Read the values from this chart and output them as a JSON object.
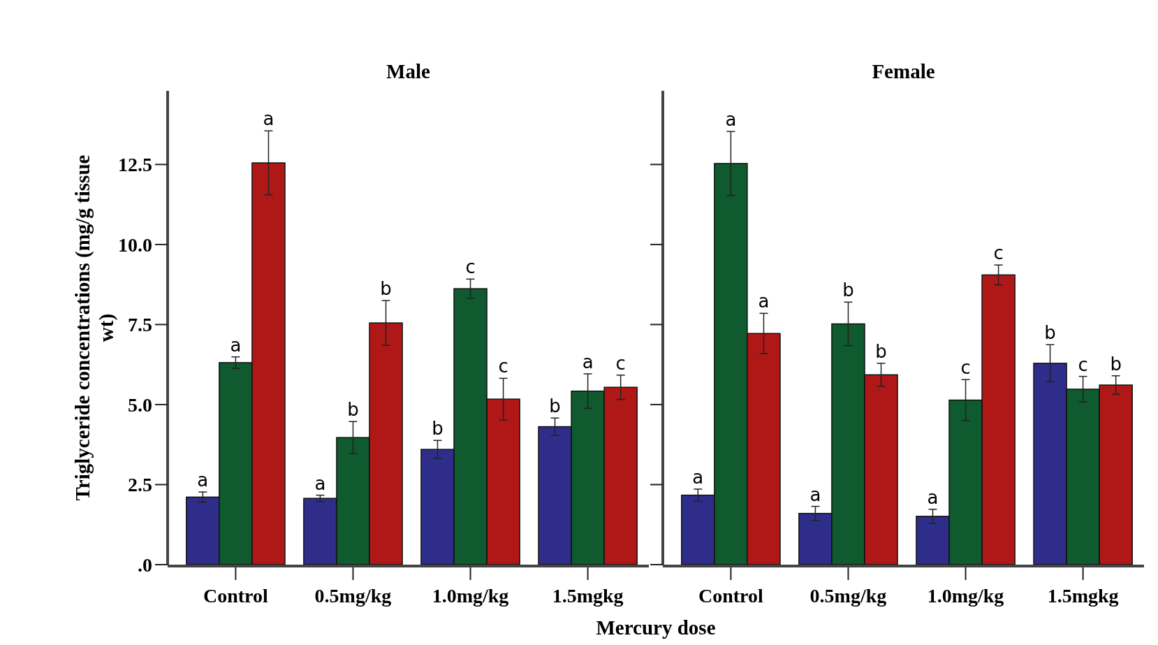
{
  "chart_data": [
    {
      "type": "bar",
      "title": "Male",
      "ylabel": "Triglyceride concentrations (mg/g tissue wt)",
      "xlabel": "Mercury dose",
      "categories": [
        "Control",
        "0.5mg/kg",
        "1.0mg/kg",
        "1.5mgkg"
      ],
      "ylim": [
        0,
        14.8
      ],
      "yticks": [
        {
          "value": 0,
          "label": ".0"
        },
        {
          "value": 2.5,
          "label": "2.5"
        },
        {
          "value": 5,
          "label": "5.0"
        },
        {
          "value": 7.5,
          "label": "7.5"
        },
        {
          "value": 10,
          "label": "10.0"
        },
        {
          "value": 12.5,
          "label": "12.5"
        }
      ],
      "grid": false,
      "series": [
        {
          "color": "#2e2e8a",
          "values": [
            2.11,
            2.07,
            3.6,
            4.31
          ],
          "errors": [
            0.16,
            0.1,
            0.28,
            0.27
          ],
          "value_labels": [
            "a",
            "a",
            "b",
            "b"
          ]
        },
        {
          "color": "#0f5a2e",
          "values": [
            6.31,
            3.97,
            8.62,
            5.42
          ],
          "errors": [
            0.18,
            0.5,
            0.3,
            0.54
          ],
          "value_labels": [
            "a",
            "b",
            "c",
            "a"
          ]
        },
        {
          "color": "#b01818",
          "values": [
            12.55,
            7.55,
            5.17,
            5.54
          ],
          "errors": [
            1.0,
            0.7,
            0.65,
            0.38
          ],
          "value_labels": [
            "a",
            "b",
            "c",
            "c"
          ]
        }
      ]
    },
    {
      "type": "bar",
      "title": "Female",
      "categories": [
        "Control",
        "0.5mg/kg",
        "1.0mg/kg",
        "1.5mgkg"
      ],
      "ylim": [
        0,
        14.8
      ],
      "yticks": [
        0,
        2.5,
        5,
        7.5,
        10,
        12.5
      ],
      "tick_labels": "x",
      "grid": false,
      "series": [
        {
          "color": "#2e2e8a",
          "values": [
            2.17,
            1.6,
            1.51,
            6.29
          ],
          "errors": [
            0.19,
            0.22,
            0.22,
            0.58
          ],
          "value_labels": [
            "a",
            "a",
            "a",
            "b"
          ]
        },
        {
          "color": "#0f5a2e",
          "values": [
            12.53,
            7.52,
            5.14,
            5.48
          ],
          "errors": [
            1.0,
            0.68,
            0.64,
            0.4
          ],
          "value_labels": [
            "a",
            "b",
            "c",
            "c"
          ]
        },
        {
          "color": "#b01818",
          "values": [
            7.22,
            5.93,
            9.05,
            5.61
          ],
          "errors": [
            0.63,
            0.36,
            0.31,
            0.29
          ],
          "value_labels": [
            "a",
            "b",
            "c",
            "b"
          ]
        }
      ]
    }
  ]
}
